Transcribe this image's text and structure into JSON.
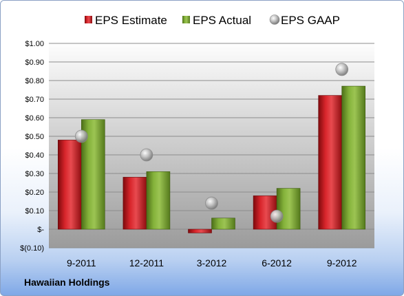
{
  "chart_data": {
    "type": "bar",
    "title": "",
    "xlabel": "",
    "ylabel": "",
    "categories": [
      "9-2011",
      "12-2011",
      "3-2012",
      "6-2012",
      "9-2012"
    ],
    "series": [
      {
        "name": "EPS Estimate",
        "type": "bar",
        "color": "#c0141a",
        "values": [
          0.48,
          0.28,
          -0.02,
          0.18,
          0.72
        ]
      },
      {
        "name": "EPS Actual",
        "type": "bar",
        "color": "#6e9a28",
        "values": [
          0.59,
          0.31,
          0.06,
          0.22,
          0.77
        ]
      },
      {
        "name": "EPS GAAP",
        "type": "scatter",
        "color": "#a8a8a8",
        "values": [
          0.5,
          0.4,
          0.14,
          0.07,
          0.86
        ]
      }
    ],
    "ylim": [
      -0.1,
      1.0
    ],
    "yticks": [
      -0.1,
      0.0,
      0.1,
      0.2,
      0.3,
      0.4,
      0.5,
      0.6,
      0.7,
      0.8,
      0.9,
      1.0
    ],
    "ytick_labels": [
      "$(0.10)",
      "$-",
      "$0.10",
      "$0.20",
      "$0.30",
      "$0.40",
      "$0.50",
      "$0.60",
      "$0.70",
      "$0.80",
      "$0.90",
      "$1.00"
    ],
    "grid": true,
    "legend_position": "top"
  },
  "company_label": "Hawaiian Holdings"
}
